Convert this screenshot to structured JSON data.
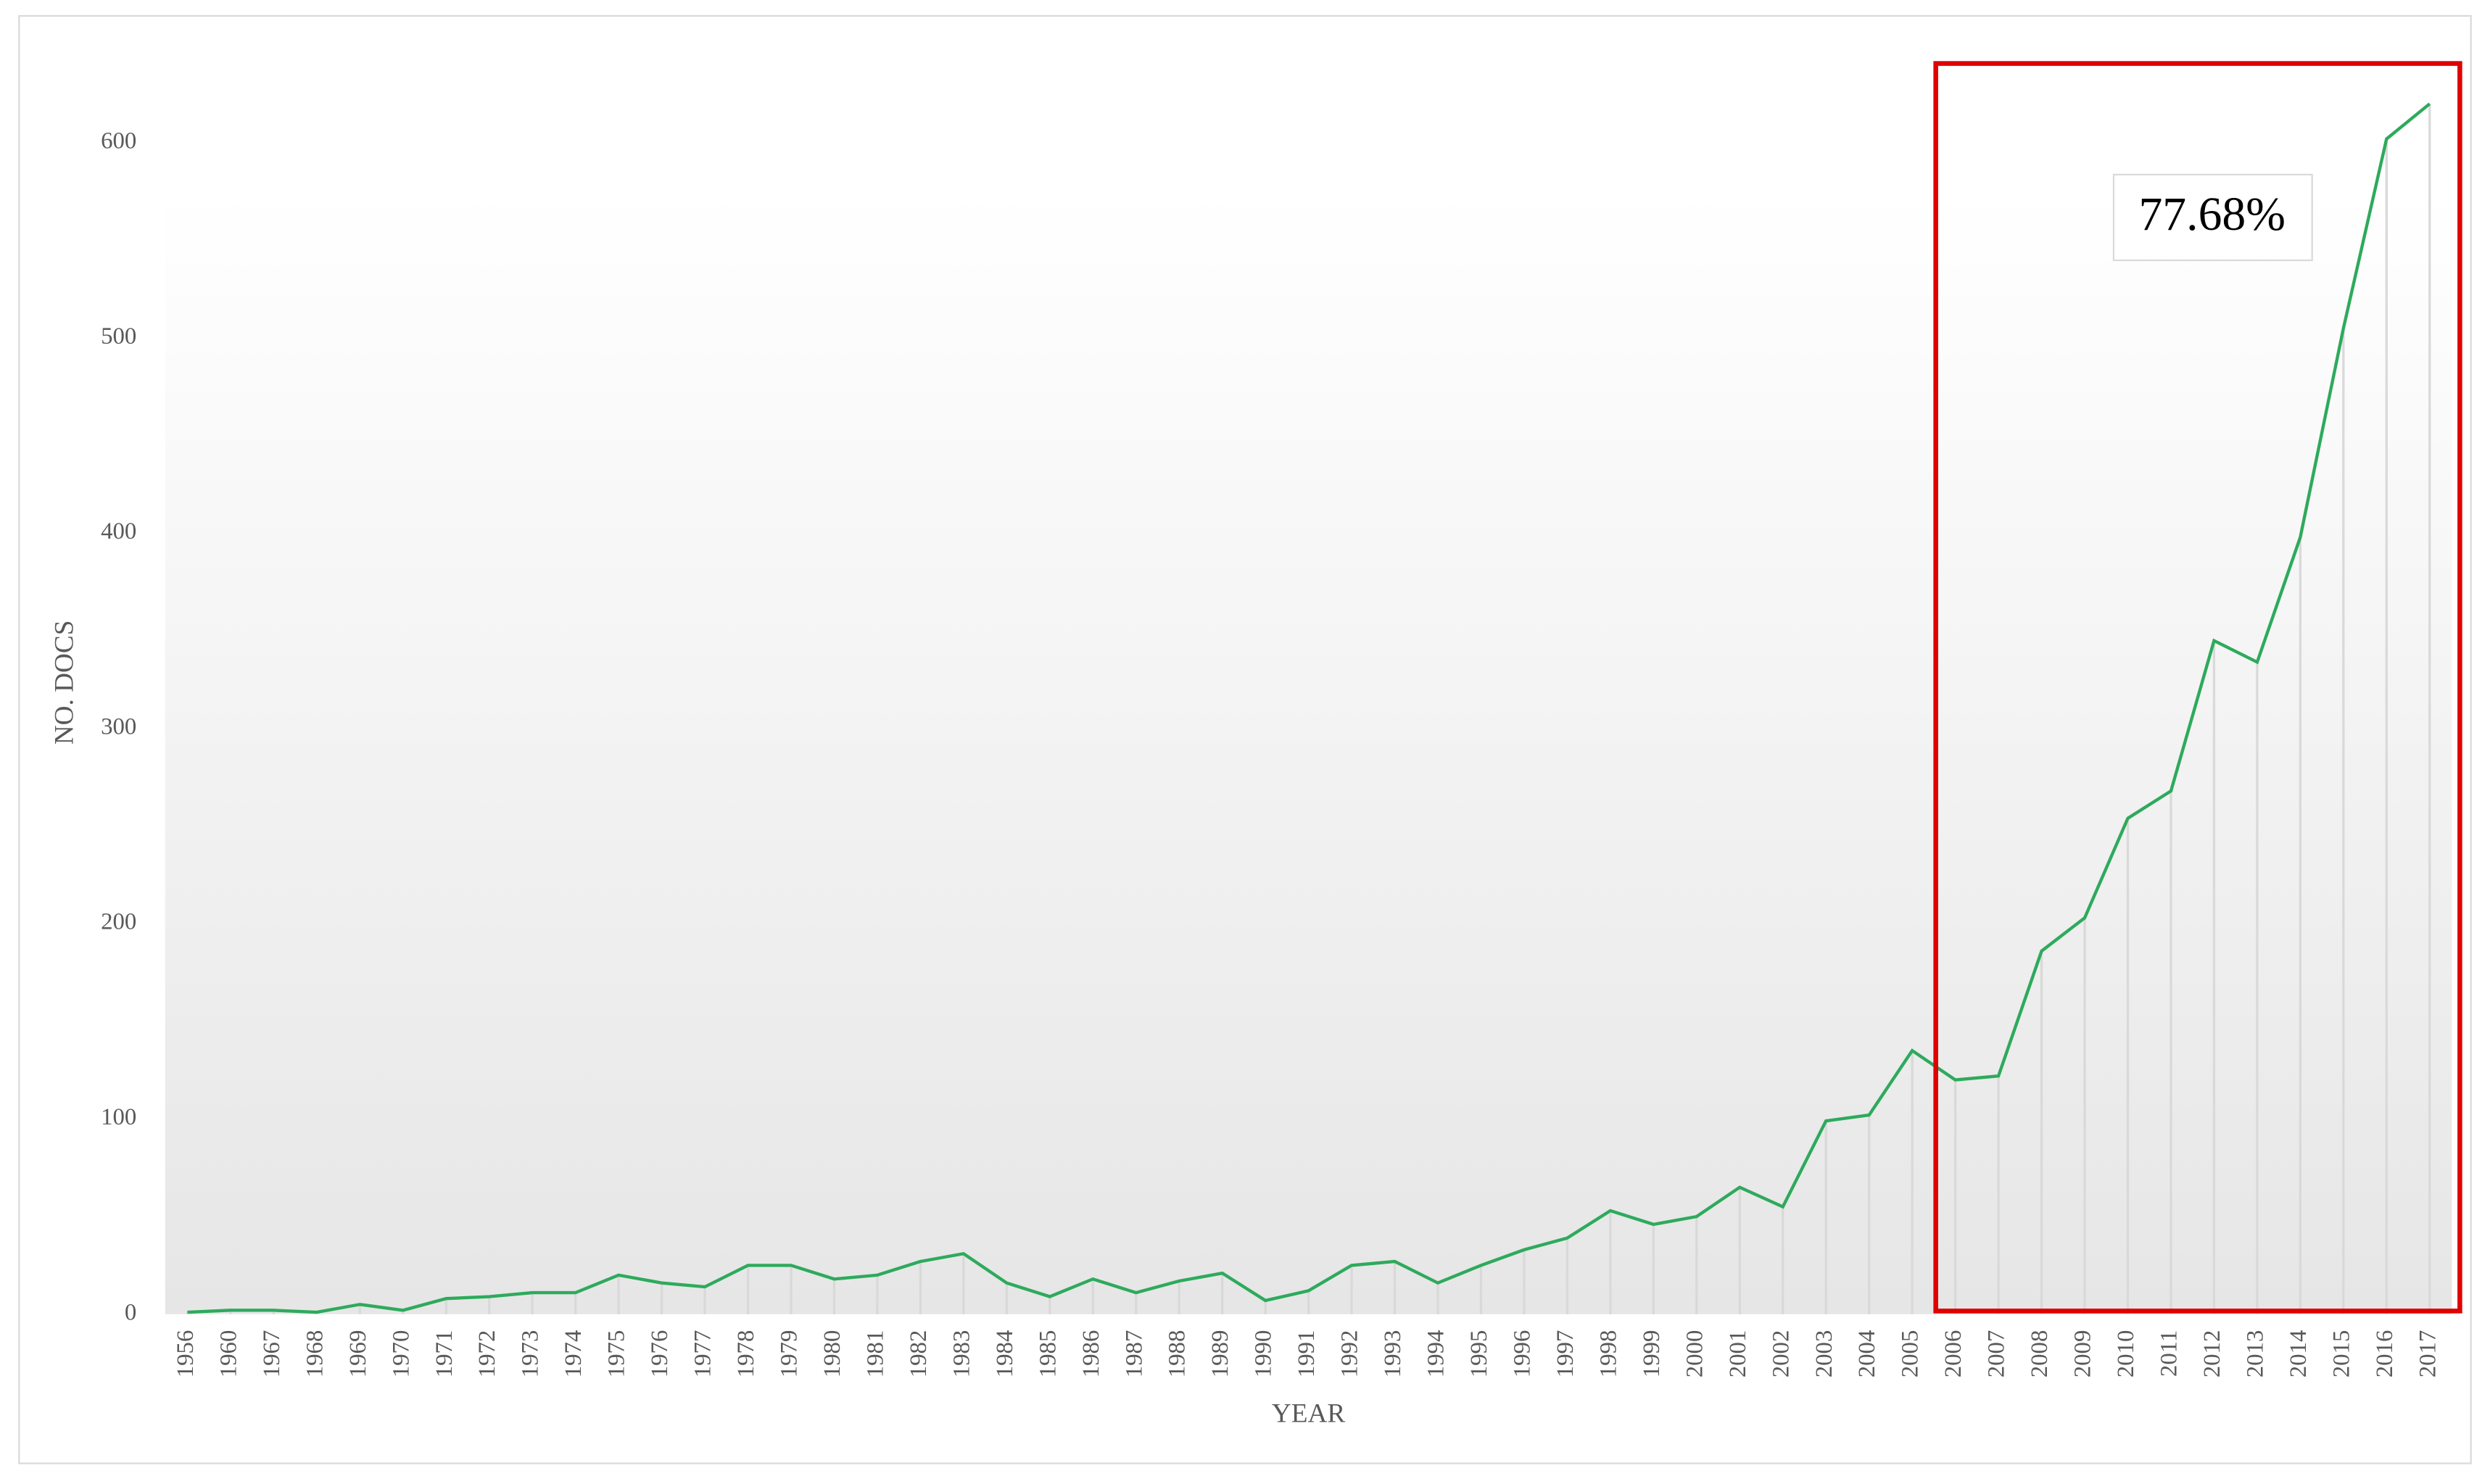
{
  "chart_data": {
    "type": "line",
    "xlabel": "YEAR",
    "ylabel": "NO. DOCS",
    "annotation": "77.68%",
    "categories": [
      "1956",
      "1960",
      "1967",
      "1968",
      "1969",
      "1970",
      "1971",
      "1972",
      "1973",
      "1974",
      "1975",
      "1976",
      "1977",
      "1978",
      "1979",
      "1980",
      "1981",
      "1982",
      "1983",
      "1984",
      "1985",
      "1986",
      "1987",
      "1988",
      "1989",
      "1990",
      "1991",
      "1992",
      "1993",
      "1994",
      "1995",
      "1996",
      "1997",
      "1998",
      "1999",
      "2000",
      "2001",
      "2002",
      "2003",
      "2004",
      "2005",
      "2006",
      "2007",
      "2008",
      "2009",
      "2010",
      "2011",
      "2012",
      "2013",
      "2014",
      "2015",
      "2016",
      "2017"
    ],
    "values": [
      1,
      2,
      2,
      1,
      5,
      2,
      8,
      9,
      11,
      11,
      20,
      16,
      14,
      25,
      25,
      18,
      20,
      27,
      31,
      16,
      9,
      18,
      11,
      17,
      21,
      7,
      12,
      25,
      27,
      16,
      25,
      33,
      39,
      53,
      46,
      50,
      65,
      55,
      99,
      102,
      135,
      120,
      122,
      186,
      203,
      254,
      268,
      345,
      334,
      398,
      505,
      602,
      620
    ],
    "color": "#2eaa5c",
    "drop_line_color": "#d9d9d9",
    "highlight_color": "#e00000",
    "ylim": [
      0,
      640
    ],
    "yticks": [
      0,
      100,
      200,
      300,
      400,
      500,
      600
    ]
  }
}
